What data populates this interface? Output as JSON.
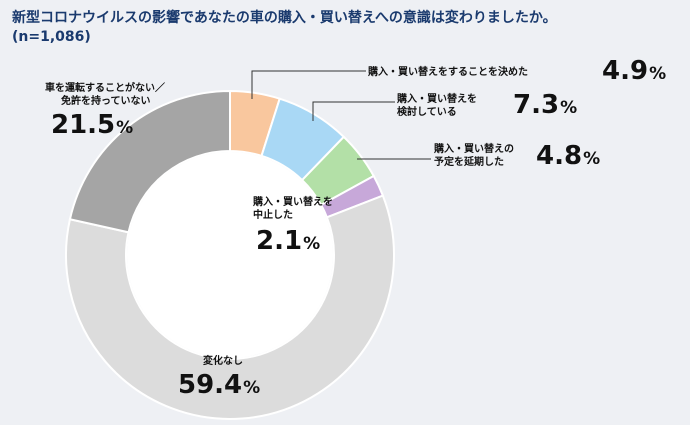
{
  "chart_data": {
    "type": "pie",
    "title": "新型コロナウイルスの影響であなたの車の購入・買い替えへの意識は変わりましたか。",
    "subtitle": "(n=1,086)",
    "unit": "%",
    "slices": [
      {
        "label": "購入・買い替えをすることを決めた",
        "value": 4.9,
        "color": "#f9c79e"
      },
      {
        "label": "購入・買い替えを検討している",
        "value": 7.3,
        "color": "#a9d8f5"
      },
      {
        "label": "購入・買い替えの予定を延期した",
        "value": 4.8,
        "color": "#b3e0a7"
      },
      {
        "label": "購入・買い替えを中止した",
        "value": 2.1,
        "color": "#c7a8d9"
      },
      {
        "label": "変化なし",
        "value": 59.4,
        "color": "#dcdcdc"
      },
      {
        "label": "車を運転することがない／免許を持っていない",
        "value": 21.5,
        "color": "#a5a5a5"
      }
    ],
    "display": {
      "slice_labels": [
        [
          "購入・買い替えをすることを決めた"
        ],
        [
          "購入・買い替えを",
          "検討している"
        ],
        [
          "購入・買い替えの",
          "予定を延期した"
        ],
        [
          "購入・買い替えを",
          "中止した"
        ],
        [
          "変化なし"
        ],
        [
          "車を運転することがない／",
          "免許を持っていない"
        ]
      ],
      "value_labels": [
        "4.9",
        "7.3",
        "4.8",
        "2.1",
        "59.4",
        "21.5"
      ]
    }
  }
}
